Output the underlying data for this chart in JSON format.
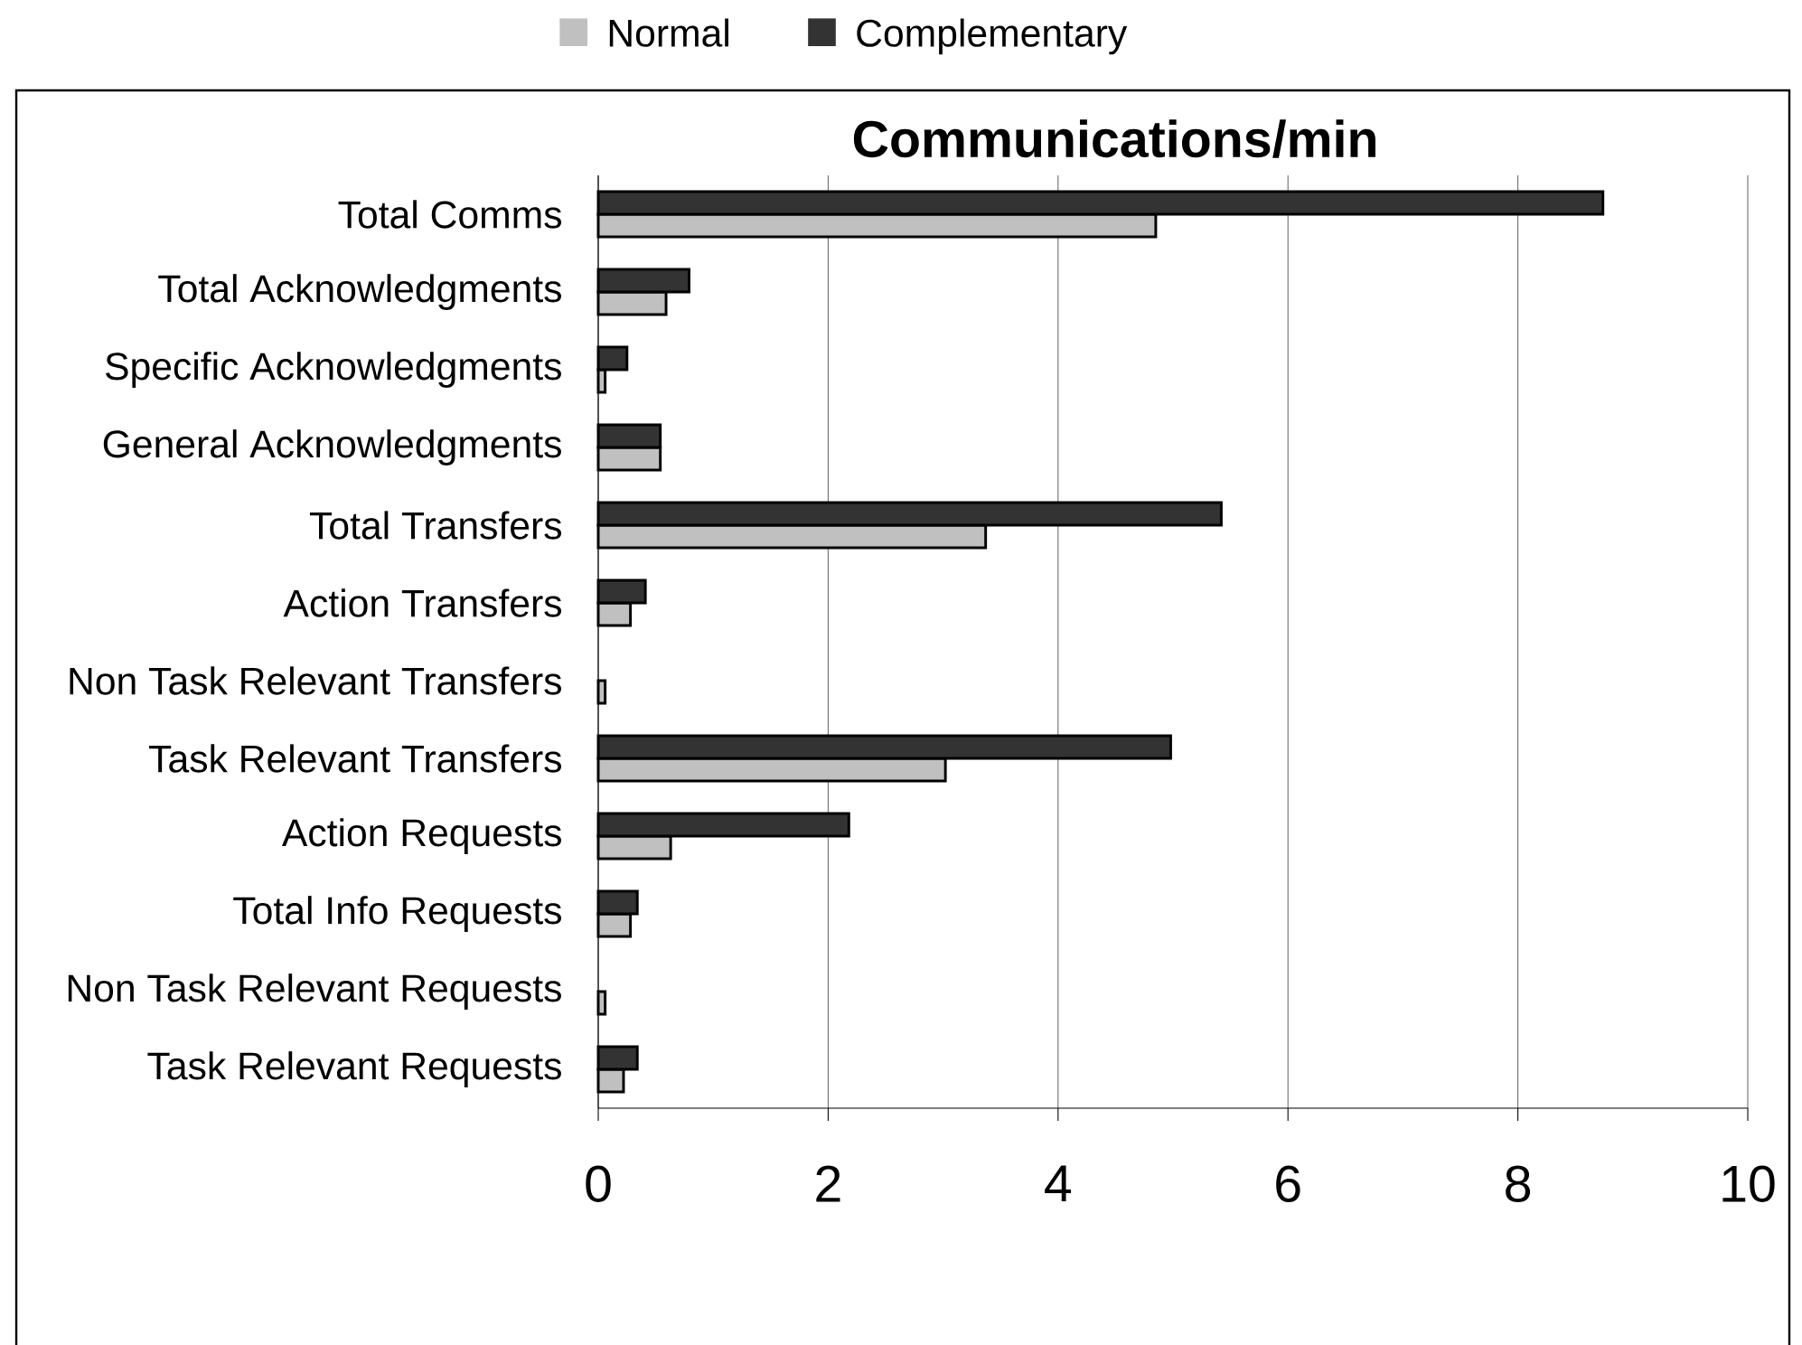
{
  "chart_data": {
    "type": "bar",
    "orientation": "horizontal",
    "title": "Communications/min",
    "categories": [
      "Total Comms",
      "Total Acknowledgments",
      "Specific Acknowledgments",
      "General Acknowledgments",
      "Total Transfers",
      "Action Transfers",
      "Non Task Relevant Transfers",
      "Task Relevant Transfers",
      "Action Requests",
      "Total Info Requests",
      "Non Task Relevant Requests",
      "Task Relevant Requests"
    ],
    "series": [
      {
        "name": "Normal",
        "color": "#c0c0c0",
        "values": [
          4.85,
          0.59,
          0.06,
          0.54,
          3.37,
          0.28,
          0.06,
          3.02,
          0.63,
          0.28,
          0.06,
          0.22
        ]
      },
      {
        "name": "Complementary",
        "color": "#333333",
        "values": [
          8.74,
          0.79,
          0.25,
          0.54,
          5.42,
          0.41,
          null,
          4.98,
          2.18,
          0.34,
          null,
          0.34
        ]
      }
    ],
    "xlim": [
      0,
      10
    ],
    "xticks": [
      0,
      2,
      4,
      6,
      8,
      10
    ],
    "grid": "x",
    "legend": "top"
  }
}
